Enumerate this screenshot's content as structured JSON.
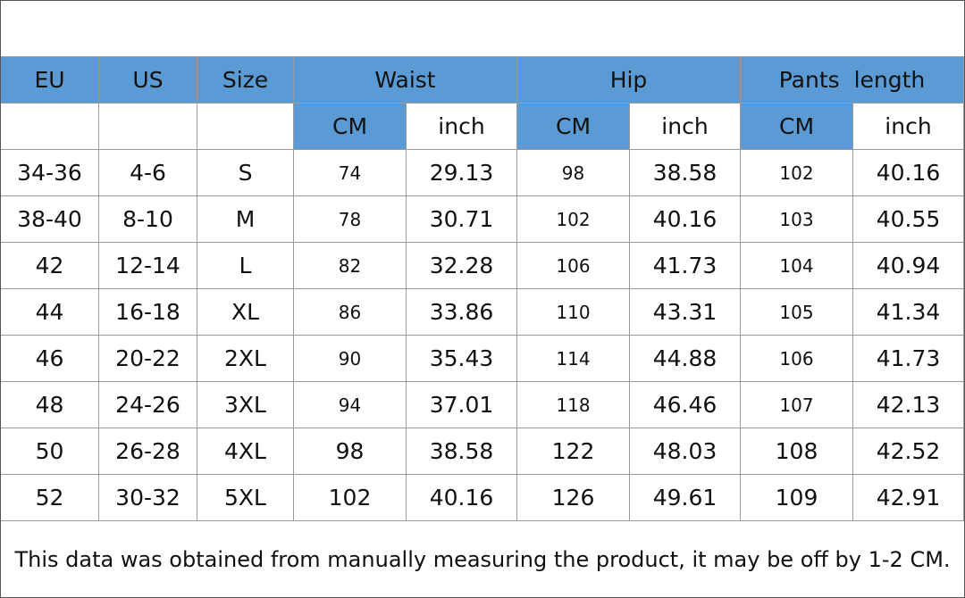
{
  "table": {
    "header": [
      "EU",
      "US",
      "Size",
      "Waist",
      "Hip",
      "Pants  length"
    ],
    "units": [
      "CM",
      "inch",
      "CM",
      "inch",
      "CM",
      "inch"
    ],
    "rows": [
      [
        "34-36",
        "4-6",
        "S",
        "74",
        "29.13",
        "98",
        "38.58",
        "102",
        "40.16"
      ],
      [
        "38-40",
        "8-10",
        "M",
        "78",
        "30.71",
        "102",
        "40.16",
        "103",
        "40.55"
      ],
      [
        "42",
        "12-14",
        "L",
        "82",
        "32.28",
        "106",
        "41.73",
        "104",
        "40.94"
      ],
      [
        "44",
        "16-18",
        "XL",
        "86",
        "33.86",
        "110",
        "43.31",
        "105",
        "41.34"
      ],
      [
        "46",
        "20-22",
        "2XL",
        "90",
        "35.43",
        "114",
        "44.88",
        "106",
        "41.73"
      ],
      [
        "48",
        "24-26",
        "3XL",
        "94",
        "37.01",
        "118",
        "46.46",
        "107",
        "42.13"
      ],
      [
        "50",
        "26-28",
        "4XL",
        "98",
        "38.58",
        "122",
        "48.03",
        "108",
        "42.52"
      ],
      [
        "52",
        "30-32",
        "5XL",
        "102",
        "40.16",
        "126",
        "49.61",
        "109",
        "42.91"
      ]
    ]
  },
  "note": "This data was obtained from manually measuring the product, it may be off by 1-2 CM."
}
